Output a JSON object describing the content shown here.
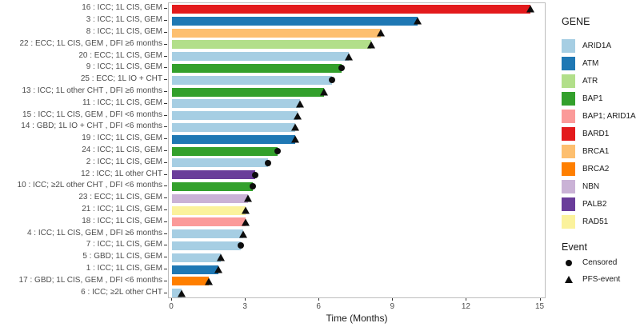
{
  "chart_data": {
    "type": "bar",
    "variant": "swimmer-plot",
    "orientation": "horizontal",
    "title": "",
    "xlabel": "Time (Months)",
    "xlim": [
      0,
      15
    ],
    "xticks": [
      "0",
      "3",
      "6",
      "9",
      "12",
      "15"
    ],
    "grid": false,
    "legend_position": "right",
    "legend": {
      "gene_title": "GENE",
      "event_title": "Event",
      "genes": [
        {
          "name": "ARID1A",
          "color": "#A6CEE3"
        },
        {
          "name": "ATM",
          "color": "#1F78B4"
        },
        {
          "name": "ATR",
          "color": "#B2DF8A"
        },
        {
          "name": "BAP1",
          "color": "#33A02C"
        },
        {
          "name": "BAP1; ARID1A",
          "color": "#FB9A99"
        },
        {
          "name": "BARD1",
          "color": "#E31A1C"
        },
        {
          "name": "BRCA1",
          "color": "#FDBF6F"
        },
        {
          "name": "BRCA2",
          "color": "#FF7F00"
        },
        {
          "name": "NBN",
          "color": "#CAB2D6"
        },
        {
          "name": "PALB2",
          "color": "#6A3D9A"
        },
        {
          "name": "RAD51",
          "color": "#FBF29C"
        }
      ],
      "events": [
        {
          "name": "Censored",
          "marker": "circle"
        },
        {
          "name": "PFS-event",
          "marker": "triangle"
        }
      ]
    },
    "patients": [
      {
        "label": "16 : ICC; 1L CIS, GEM",
        "gene": "BARD1",
        "time_months": 14.6,
        "event": "PFS-event"
      },
      {
        "label": "3 : ICC; 1L CIS, GEM",
        "gene": "ATM",
        "time_months": 10.0,
        "event": "PFS-event"
      },
      {
        "label": "8 : ICC; 1L CIS, GEM",
        "gene": "BRCA1",
        "time_months": 8.5,
        "event": "PFS-event"
      },
      {
        "label": "22 : ECC; 1L CIS, GEM , DFI ≥6 months",
        "gene": "ATR",
        "time_months": 8.1,
        "event": "PFS-event"
      },
      {
        "label": "20 : ECC; 1L CIS, GEM",
        "gene": "ARID1A",
        "time_months": 7.2,
        "event": "PFS-event"
      },
      {
        "label": "9 : ICC; 1L CIS, GEM",
        "gene": "BAP1",
        "time_months": 6.9,
        "event": "Censored"
      },
      {
        "label": "25 : ECC; 1L IO + CHT",
        "gene": "ARID1A",
        "time_months": 6.5,
        "event": "Censored"
      },
      {
        "label": "13 : ICC; 1L other CHT , DFI ≥6 months",
        "gene": "BAP1",
        "time_months": 6.2,
        "event": "PFS-event"
      },
      {
        "label": "11 : ICC; 1L CIS, GEM",
        "gene": "ARID1A",
        "time_months": 5.2,
        "event": "PFS-event"
      },
      {
        "label": "15 : ICC; 1L CIS, GEM , DFI <6 months",
        "gene": "ARID1A",
        "time_months": 5.1,
        "event": "PFS-event"
      },
      {
        "label": "14 : GBD; 1L IO + CHT , DFI <6 months",
        "gene": "ARID1A",
        "time_months": 5.0,
        "event": "PFS-event"
      },
      {
        "label": "19 : ICC; 1L CIS, GEM",
        "gene": "ATM",
        "time_months": 5.0,
        "event": "PFS-event"
      },
      {
        "label": "24 : ICC; 1L CIS, GEM",
        "gene": "BAP1",
        "time_months": 4.3,
        "event": "Censored"
      },
      {
        "label": "2 : ICC; 1L CIS, GEM",
        "gene": "ARID1A",
        "time_months": 3.9,
        "event": "Censored"
      },
      {
        "label": "12 : ICC; 1L other CHT",
        "gene": "PALB2",
        "time_months": 3.4,
        "event": "Censored"
      },
      {
        "label": "10 : ICC; ≥2L other CHT , DFI <6 months",
        "gene": "BAP1",
        "time_months": 3.3,
        "event": "Censored"
      },
      {
        "label": "23 : ECC; 1L CIS, GEM",
        "gene": "NBN",
        "time_months": 3.1,
        "event": "PFS-event"
      },
      {
        "label": "21 : ICC; 1L CIS, GEM",
        "gene": "RAD51",
        "time_months": 3.0,
        "event": "PFS-event"
      },
      {
        "label": "18 : ICC; 1L CIS, GEM",
        "gene": "BAP1; ARID1A",
        "time_months": 3.0,
        "event": "PFS-event"
      },
      {
        "label": "4 : ICC; 1L CIS, GEM , DFI ≥6 months",
        "gene": "ARID1A",
        "time_months": 2.9,
        "event": "PFS-event"
      },
      {
        "label": "7 : ICC; 1L CIS, GEM",
        "gene": "ARID1A",
        "time_months": 2.8,
        "event": "Censored"
      },
      {
        "label": "5 : GBD; 1L CIS, GEM",
        "gene": "ARID1A",
        "time_months": 2.0,
        "event": "PFS-event"
      },
      {
        "label": "1 : ICC; 1L CIS, GEM",
        "gene": "ATM",
        "time_months": 1.9,
        "event": "PFS-event"
      },
      {
        "label": "17 : GBD; 1L CIS, GEM , DFI <6 months",
        "gene": "BRCA2",
        "time_months": 1.5,
        "event": "PFS-event"
      },
      {
        "label": "6 : ICC; ≥2L other CHT",
        "gene": "ARID1A",
        "time_months": 0.4,
        "event": "PFS-event"
      }
    ]
  }
}
